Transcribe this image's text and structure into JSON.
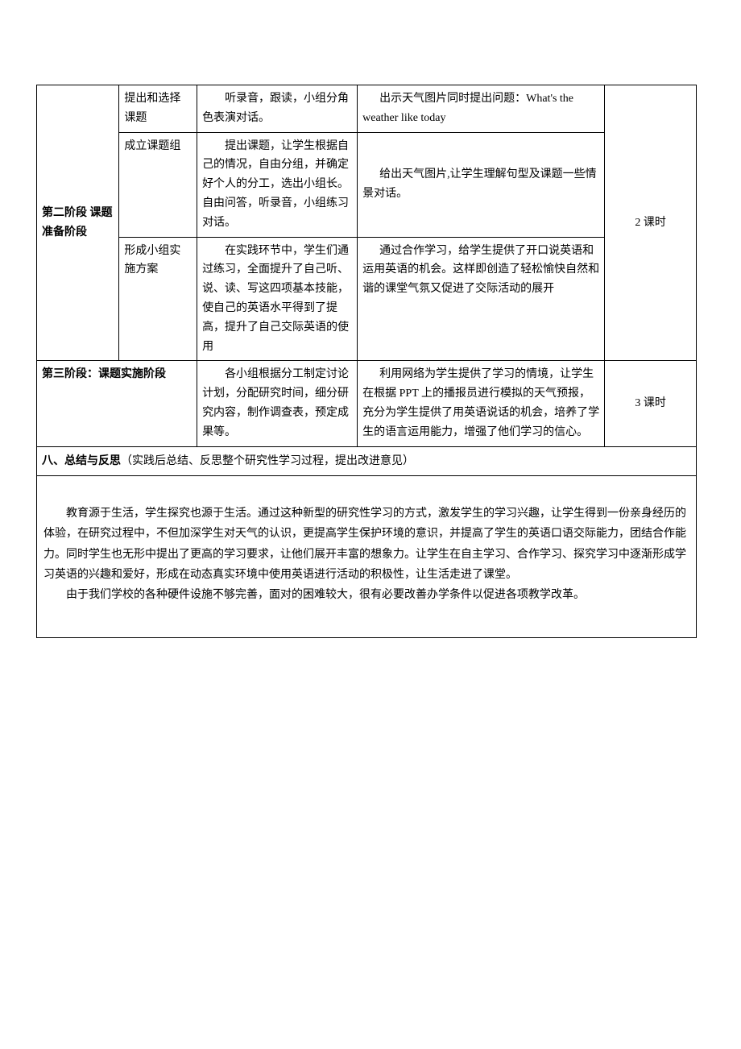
{
  "table": {
    "stage2_label": "第二阶段 课题准备阶段",
    "stage2_duration": "2 课时",
    "rows": [
      {
        "sub": "提出和选择课题",
        "col3": "听录音，跟读，小组分角色表演对话。",
        "col4": "出示天气图片同时提出问题：What's the weather like today"
      },
      {
        "sub": "成立课题组",
        "col3": "提出课题，让学生根据自己的情况，自由分组，并确定好个人的分工，选出小组长。自由问答，听录音，小组练习对话。",
        "col4": "给出天气图片,让学生理解句型及课题一些情景对话。"
      },
      {
        "sub": "形成小组实施方案",
        "col3": "在实践环节中，学生们通过练习，全面提升了自己听、说、读、写这四项基本技能，使自己的英语水平得到了提高，提升了自己交际英语的使用",
        "col4": "通过合作学习，给学生提供了开口说英语和运用英语的机会。这样即创造了轻松愉快自然和谐的课堂气氛又促进了交际活动的展开"
      }
    ],
    "stage3_label": "第三阶段：课题实施阶段",
    "stage3_col3": "各小组根据分工制定讨论计划，分配研究时间，细分研究内容，制作调查表，预定成果等。",
    "stage3_col4": "利用网络为学生提供了学习的情境，让学生在根据 PPT 上的播报员进行模拟的天气预报，充分为学生提供了用英语说话的机会，培养了学生的语言运用能力，增强了他们学习的信心。",
    "stage3_duration": "3 课时",
    "section8_title": "八、总结与反思",
    "section8_subtitle": "（实践后总结、反思整个研究性学习过程，提出改进意见）",
    "reflection_p1": "教育源于生活，学生探究也源于生活。通过这种新型的研究性学习的方式，激发学生的学习兴趣，让学生得到一份亲身经历的体验，在研究过程中，不但加深学生对天气的认识，更提高学生保护环境的意识，并提高了学生的英语口语交际能力，团结合作能力。同时学生也无形中提出了更高的学习要求，让他们展开丰富的想象力。让学生在自主学习、合作学习、探究学习中逐渐形成学习英语的兴趣和爱好，形成在动态真实环境中使用英语进行活动的积极性，让生活走进了课堂。",
    "reflection_p2": "由于我们学校的各种硬件设施不够完善，面对的困难较大，很有必要改善办学条件以促进各项教学改革。"
  },
  "colors": {
    "border": "#000000",
    "text": "#000000",
    "background": "#ffffff"
  },
  "typography": {
    "font_family": "SimSun",
    "base_font_size": 14,
    "line_height": 1.7
  }
}
